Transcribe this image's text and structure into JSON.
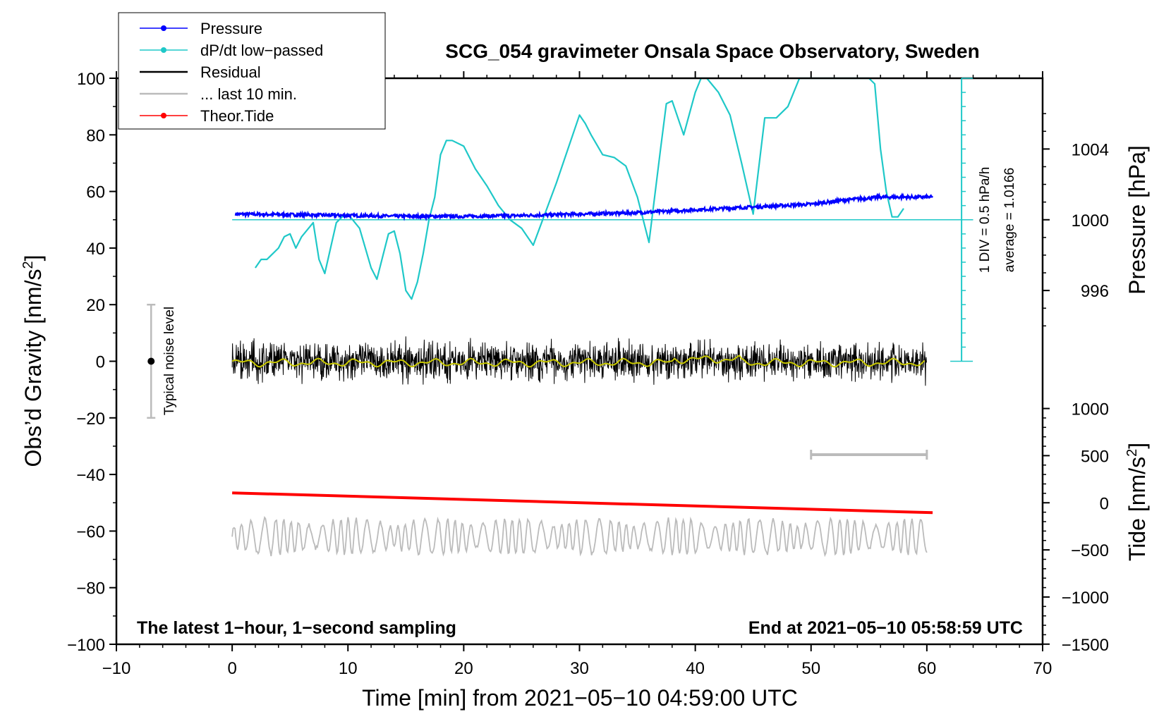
{
  "chart_data": {
    "type": "line",
    "title": "SCG_054 gravimeter Onsala Space Observatory, Sweden",
    "xlabel": "Time [min] from 2021−05−10 04:59:00 UTC",
    "ylabel_left": "Obs’d Gravity [nm/s",
    "ylabel_left_sup": "2",
    "ylabel_left_end": "]",
    "ylabel_right_pressure": "Pressure [hPa]",
    "ylabel_right_tide": "Tide [nm/s",
    "ylabel_right_tide_sup": "2",
    "ylabel_right_tide_end": "]",
    "xlim": [
      -10,
      70
    ],
    "ylim": [
      -100,
      100
    ],
    "x_ticks": [
      -10,
      0,
      10,
      20,
      30,
      40,
      50,
      60,
      70
    ],
    "x_tick_labels": [
      "−10",
      "0",
      "10",
      "20",
      "30",
      "40",
      "50",
      "60",
      "70"
    ],
    "y_ticks": [
      -100,
      -80,
      -60,
      -40,
      -20,
      0,
      20,
      40,
      60,
      80,
      100
    ],
    "y_tick_labels": [
      "−100",
      "−80",
      "−60",
      "−40",
      "−20",
      "0",
      "20",
      "40",
      "60",
      "80",
      "100"
    ],
    "pressure_axis": {
      "gravity_at_1000hPa": 50,
      "nms2_per_hPa": 6.25,
      "ticks": [
        996,
        1000,
        1004
      ],
      "tick_labels": [
        "996",
        "1000",
        "1004"
      ]
    },
    "tide_axis": {
      "gravity_at_0": -50,
      "per_unit": 0.0333,
      "ticks": [
        -1500,
        -1000,
        -500,
        0,
        500,
        1000
      ],
      "tick_labels": [
        "−1500",
        "−1000",
        "−500",
        "0",
        "500",
        "1000"
      ]
    },
    "legend": {
      "position": "top-left",
      "items": [
        {
          "label": "Pressure",
          "color": "#0000ff",
          "marker": true
        },
        {
          "label": "dP/dt low−passed",
          "color": "#1fc8c8",
          "marker": true
        },
        {
          "label": "Residual",
          "color": "#000000",
          "marker": false
        },
        {
          "label": "... last 10 min.",
          "color": "#bbbbbb",
          "marker": false
        },
        {
          "label": "Theor.Tide",
          "color": "#ff0000",
          "marker": true
        }
      ]
    },
    "series": [
      {
        "name": "Pressure",
        "color": "#0000ff",
        "units": "gravity-scale",
        "x": [
          0.3,
          5,
          10,
          15,
          20,
          25,
          30,
          35,
          40,
          45,
          50,
          53,
          56,
          60.5
        ],
        "y": [
          52,
          51.8,
          51.5,
          51.2,
          51.2,
          51.5,
          52,
          52.5,
          53.5,
          54.5,
          55.5,
          57,
          58,
          58
        ]
      },
      {
        "name": "dP/dt low−passed",
        "color": "#1fc8c8",
        "units": "gravity-scale (baseline 50 = 0 hPa/h)",
        "x": [
          2,
          2.5,
          3,
          4,
          4.5,
          5,
          5.5,
          6,
          7,
          7.5,
          8,
          8.5,
          9,
          9.5,
          10,
          11,
          11.5,
          12,
          12.5,
          13,
          13.5,
          14,
          14.5,
          15,
          15.5,
          16,
          16.5,
          17,
          17.5,
          18,
          18.5,
          19,
          20,
          21,
          22,
          23,
          24,
          25,
          26,
          27,
          28,
          29,
          30,
          30.5,
          31,
          32,
          33,
          34,
          35,
          36,
          37,
          37.5,
          38,
          39,
          40,
          40.5,
          41,
          42,
          43,
          44,
          45,
          46,
          47,
          48,
          49,
          50,
          51,
          52,
          53,
          54,
          55,
          55.5,
          56,
          56.5,
          57,
          57.5,
          58
        ],
        "y": [
          33,
          36,
          36,
          40,
          44,
          45,
          40,
          44,
          49,
          36,
          31,
          40,
          49,
          51,
          52,
          47,
          40,
          33,
          29,
          37,
          45,
          46,
          38,
          25,
          22,
          28,
          38,
          50,
          58,
          73,
          78,
          78,
          76,
          68,
          62,
          55,
          50,
          47,
          41,
          52,
          63,
          75,
          87,
          84,
          80,
          73,
          72,
          69,
          58,
          42,
          75,
          91,
          92,
          80,
          95,
          100,
          100,
          95,
          87,
          70,
          52,
          86,
          86,
          90,
          100,
          100,
          100,
          100,
          100,
          100,
          100,
          98,
          75,
          60,
          51,
          51,
          54
        ]
      },
      {
        "name": "Residual",
        "color": "#000000",
        "x_range": [
          0,
          60
        ],
        "amplitude": 4,
        "mean": 0
      },
      {
        "name": "Residual smoothed",
        "color": "#c8c800",
        "x_range": [
          0,
          60
        ],
        "mean": 0
      },
      {
        "name": "Theor.Tide",
        "color": "#ff0000",
        "units": "gravity-scale",
        "x": [
          0,
          60.5
        ],
        "y": [
          -46.5,
          -53.5
        ]
      },
      {
        "name": "... last 10 min.",
        "color": "#bbbbbb",
        "x_range": [
          0,
          60
        ],
        "mean": -62,
        "amplitude": 5
      }
    ],
    "annotations": {
      "noise_bar": {
        "label": "Typical noise level",
        "x": -7,
        "y_center": 0,
        "y_low": -20,
        "y_high": 20
      },
      "scale_bar_x": {
        "x_start": 50,
        "x_end": 60,
        "y": -33
      },
      "dpdt_scale": {
        "label_1": "1 DIV = 0.5 hPa/h",
        "label_2": "average = 1.0166",
        "x": 63,
        "y_low": 0,
        "y_high": 100,
        "divisions": 20
      },
      "bottom_left": "The latest 1−hour, 1−second sampling",
      "bottom_right": "End at 2021−05−10 05:58:59 UTC"
    }
  }
}
